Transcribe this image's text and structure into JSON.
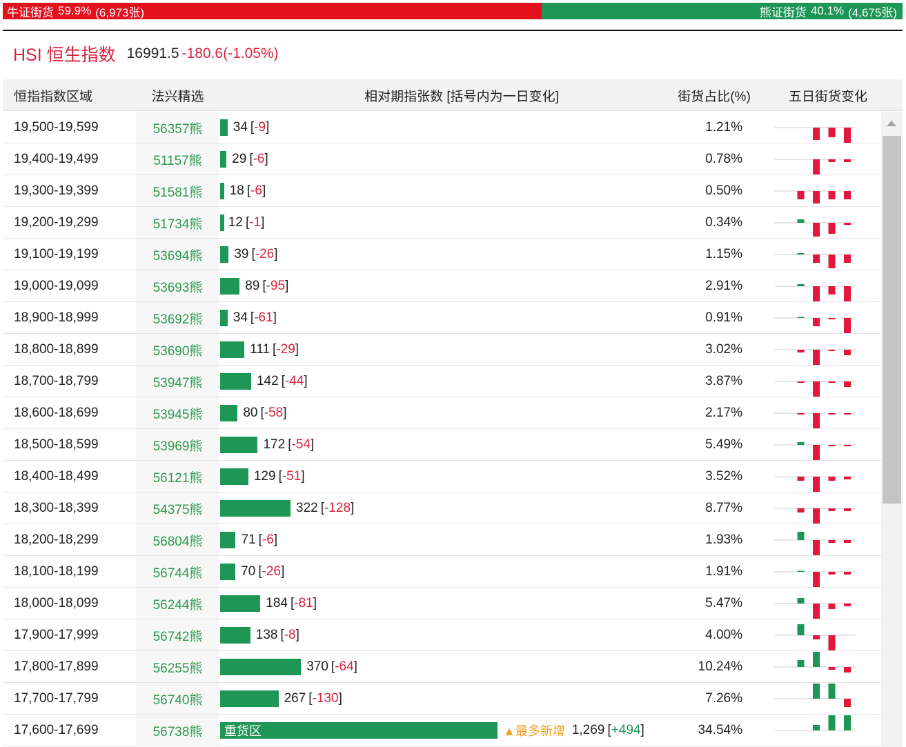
{
  "summary": {
    "bull": {
      "label": "牛证街货",
      "share": 59.9,
      "share_label": "59.9%",
      "count_label": "(6,973张)"
    },
    "bear": {
      "label": "熊证街货",
      "share": 40.1,
      "share_label": "40.1%",
      "count_label": "(4,675张)"
    }
  },
  "header": {
    "title": "HSI 恒生指数",
    "price": "16991.5",
    "change": "-180.6(-1.05%)"
  },
  "table": {
    "columns": [
      "恒指指数区域",
      "法兴精选",
      "相对期指张数 [括号内为一日变化]",
      "街货占比(%)",
      "五日街货变化"
    ],
    "rows": [
      {
        "range": "19,500-19,599",
        "code": "56357熊",
        "count": 34,
        "change": "-9",
        "ratio": "1.21%",
        "five_day": [
          0,
          0,
          -18,
          -14,
          -22
        ]
      },
      {
        "range": "19,400-19,499",
        "code": "51157熊",
        "count": 29,
        "change": "-6",
        "ratio": "0.78%",
        "five_day": [
          0,
          0,
          -22,
          -4,
          -4
        ]
      },
      {
        "range": "19,300-19,399",
        "code": "51581熊",
        "count": 18,
        "change": "-6",
        "ratio": "0.50%",
        "five_day": [
          0,
          -12,
          -18,
          -12,
          -12
        ]
      },
      {
        "range": "19,200-19,299",
        "code": "51734熊",
        "count": 12,
        "change": "-1",
        "ratio": "0.34%",
        "five_day": [
          0,
          5,
          -20,
          -16,
          -3
        ]
      },
      {
        "range": "19,100-19,199",
        "code": "53694熊",
        "count": 39,
        "change": "-26",
        "ratio": "1.15%",
        "five_day": [
          0,
          2,
          -12,
          -20,
          -12
        ]
      },
      {
        "range": "19,000-19,099",
        "code": "53693熊",
        "count": 89,
        "change": "-95",
        "ratio": "2.91%",
        "five_day": [
          0,
          3,
          -22,
          -12,
          -22
        ]
      },
      {
        "range": "18,900-18,999",
        "code": "53692熊",
        "count": 34,
        "change": "-61",
        "ratio": "0.91%",
        "five_day": [
          0,
          1,
          -12,
          -2,
          -22
        ]
      },
      {
        "range": "18,800-18,899",
        "code": "53690熊",
        "count": 111,
        "change": "-29",
        "ratio": "3.02%",
        "five_day": [
          0,
          -4,
          -22,
          -2,
          -8
        ]
      },
      {
        "range": "18,700-18,799",
        "code": "53947熊",
        "count": 142,
        "change": "-44",
        "ratio": "3.87%",
        "five_day": [
          0,
          -2,
          -22,
          -2,
          -8
        ]
      },
      {
        "range": "18,600-18,699",
        "code": "53945熊",
        "count": 80,
        "change": "-58",
        "ratio": "2.17%",
        "five_day": [
          0,
          -2,
          -22,
          -2,
          -2
        ]
      },
      {
        "range": "18,500-18,599",
        "code": "53969熊",
        "count": 172,
        "change": "-54",
        "ratio": "5.49%",
        "five_day": [
          0,
          4,
          -22,
          -2,
          -2
        ]
      },
      {
        "range": "18,400-18,499",
        "code": "56121熊",
        "count": 129,
        "change": "-51",
        "ratio": "3.52%",
        "five_day": [
          0,
          -6,
          -22,
          -6,
          -4
        ]
      },
      {
        "range": "18,300-18,399",
        "code": "54375熊",
        "count": 322,
        "change": "-128",
        "ratio": "8.77%",
        "five_day": [
          0,
          -6,
          -22,
          -4,
          -4
        ]
      },
      {
        "range": "18,200-18,299",
        "code": "56804熊",
        "count": 71,
        "change": "-6",
        "ratio": "1.93%",
        "five_day": [
          0,
          12,
          -22,
          -4,
          -4
        ]
      },
      {
        "range": "18,100-18,199",
        "code": "56744熊",
        "count": 70,
        "change": "-26",
        "ratio": "1.91%",
        "five_day": [
          0,
          1,
          -22,
          -4,
          -4
        ]
      },
      {
        "range": "18,000-18,099",
        "code": "56244熊",
        "count": 184,
        "change": "-81",
        "ratio": "5.47%",
        "five_day": [
          0,
          8,
          -22,
          -8,
          -4
        ]
      },
      {
        "range": "17,900-17,999",
        "code": "56742熊",
        "count": 138,
        "change": "-8",
        "ratio": "4.00%",
        "five_day": [
          0,
          16,
          -6,
          -22,
          0
        ]
      },
      {
        "range": "17,800-17,899",
        "code": "56255熊",
        "count": 370,
        "change": "-64",
        "ratio": "10.24%",
        "five_day": [
          0,
          10,
          22,
          -4,
          -8
        ]
      },
      {
        "range": "17,700-17,799",
        "code": "56740熊",
        "count": 267,
        "change": "-130",
        "ratio": "7.26%",
        "five_day": [
          0,
          0,
          22,
          22,
          -12
        ]
      },
      {
        "range": "17,600-17,699",
        "code": "56738熊",
        "count": 1269,
        "count_label": "1,269",
        "change": "+494",
        "ratio": "34.54%",
        "five_day": [
          0,
          0,
          8,
          22,
          22
        ],
        "bar_label": "重货区",
        "note": "▲最多新增"
      }
    ]
  }
}
